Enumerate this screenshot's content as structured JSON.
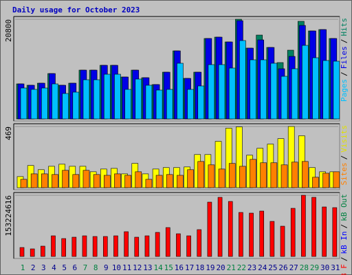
{
  "chart_data": {
    "type": "webalizer-daily",
    "title": "Daily usage for October 2023",
    "separator": "/",
    "categories": [
      "1",
      "2",
      "3",
      "4",
      "5",
      "6",
      "7",
      "8",
      "9",
      "10",
      "11",
      "12",
      "13",
      "14",
      "15",
      "16",
      "17",
      "18",
      "19",
      "20",
      "21",
      "22",
      "23",
      "24",
      "25",
      "26",
      "27",
      "28",
      "29",
      "30",
      "31"
    ],
    "category_colors": [
      "#008040",
      "#00008b",
      "#00008b",
      "#00008b",
      "#00008b",
      "#00008b",
      "#008040",
      "#008040",
      "#00008b",
      "#00008b",
      "#00008b",
      "#00008b",
      "#00008b",
      "#008040",
      "#008040",
      "#00008b",
      "#00008b",
      "#00008b",
      "#00008b",
      "#00008b",
      "#008040",
      "#008040",
      "#00008b",
      "#00008b",
      "#00008b",
      "#00008b",
      "#00008b",
      "#008040",
      "#008040",
      "#00008b",
      "#00008b"
    ],
    "panels": [
      {
        "ylim": [
          0,
          20800
        ],
        "yticks": [
          20800
        ],
        "series": [
          {
            "name": "Pages",
            "color": "#00c0ff",
            "values": [
              6455,
              6168,
              6455,
              7316,
              5308,
              5594,
              8177,
              8177,
              9324,
              9324,
              6168,
              8320,
              7029,
              6025,
              6168,
              11619,
              6168,
              6886,
              11332,
              11332,
              10615,
              16353,
              12336,
              12336,
              11619,
              8894,
              10472,
              15348,
              12766,
              12193,
              12049
            ]
          },
          {
            "name": "Files",
            "color": "#0000e6",
            "values": [
              7316,
              7029,
              7459,
              9468,
              7029,
              7459,
              10185,
              10185,
              11189,
              11189,
              8750,
              10185,
              8607,
              7172,
              9755,
              14201,
              8463,
              9755,
              16784,
              17070,
              16066,
              20500,
              14775,
              16496,
              14918,
              10472,
              13053,
              19508,
              18361,
              18648,
              16784
            ]
          },
          {
            "name": "Hits",
            "color": "#008060",
            "values": [
              7316,
              7029,
              7459,
              9468,
              7029,
              7459,
              10185,
              10185,
              11189,
              11189,
              8750,
              10185,
              8607,
              7172,
              9755,
              14201,
              8463,
              9755,
              16784,
              17070,
              16066,
              20800,
              14775,
              17500,
              14918,
              11762,
              14344,
              20370,
              18361,
              18648,
              16784
            ]
          }
        ]
      },
      {
        "ylim": [
          0,
          469
        ],
        "yticks": [
          469
        ],
        "series": [
          {
            "name": "Sites",
            "color": "#ff8000",
            "values": [
              64,
              106,
              106,
              101,
              133,
              101,
              133,
              101,
              95,
              106,
              95,
              122,
              64,
              95,
              101,
              95,
              138,
              201,
              175,
              143,
              186,
              164,
              217,
              191,
              191,
              175,
              196,
              201,
              80,
              111,
              122
            ]
          },
          {
            "name": "Visits",
            "color": "#ffff00",
            "values": [
              85,
              170,
              138,
              164,
              180,
              164,
              164,
              122,
              143,
              148,
              106,
              186,
              106,
              143,
              154,
              154,
              159,
              254,
              254,
              355,
              456,
              466,
              249,
              302,
              334,
              376,
              469,
              398,
              154,
              122,
              122
            ]
          }
        ]
      },
      {
        "ylim": [
          0,
          153224616
        ],
        "yticks": [
          153224616
        ],
        "series": [
          {
            "name": "kB F",
            "color": "#ff0000",
            "values": [
              22381000,
              18938000,
              25824000,
              51649000,
              44762000,
              48206000,
              51649000,
              49927000,
              49927000,
              51649000,
              61979000,
              48206000,
              51649000,
              60257000,
              72308000,
              56814000,
              51649000,
              67143000,
              136008000,
              148060000,
              137730000,
              110184000,
              108462000,
              113627000,
              87803000,
              75752000,
              120514000,
              153224616,
              148060000,
              123957000,
              122235000
            ]
          },
          {
            "name": "kB In",
            "color": "#0000ff"
          },
          {
            "name": "kB Out",
            "color": "#008040"
          }
        ]
      }
    ]
  }
}
